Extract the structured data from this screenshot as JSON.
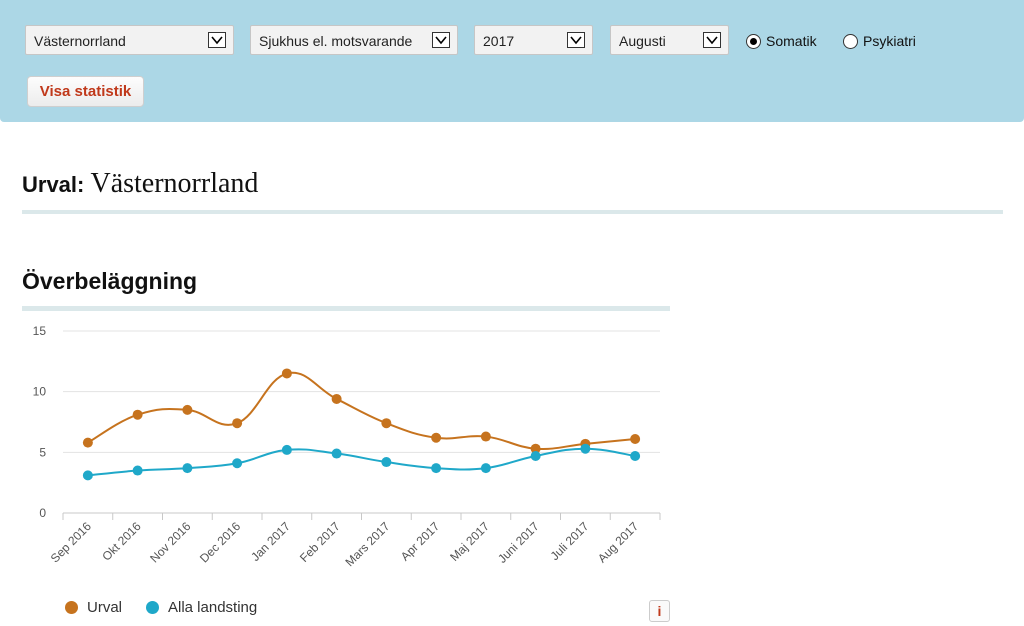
{
  "filters": {
    "region": "Västernorrland",
    "facility": "Sjukhus el. motsvarande",
    "year": "2017",
    "month": "Augusti",
    "radio_somatik": "Somatik",
    "radio_psykiatri": "Psykiatri",
    "somatik_selected": true,
    "button_label": "Visa statistik"
  },
  "selection": {
    "label": "Urval:",
    "value": "Västernorrland"
  },
  "section_title": "Överbeläggning",
  "info_label": "i",
  "colors": {
    "urval": "#c6731e",
    "alla": "#1fa8c9",
    "accent": "#c0391b"
  },
  "chart_data": {
    "type": "line",
    "title": "Överbeläggning",
    "categories": [
      "Sep 2016",
      "Okt 2016",
      "Nov 2016",
      "Dec 2016",
      "Jan 2017",
      "Feb 2017",
      "Mars 2017",
      "Apr 2017",
      "Maj 2017",
      "Juni 2017",
      "Juli 2017",
      "Aug 2017"
    ],
    "series": [
      {
        "name": "Urval",
        "color": "#c6731e",
        "values": [
          5.8,
          8.1,
          8.5,
          7.4,
          11.5,
          9.4,
          7.4,
          6.2,
          6.3,
          5.3,
          5.7,
          6.1
        ]
      },
      {
        "name": "Alla landsting",
        "color": "#1fa8c9",
        "values": [
          3.1,
          3.5,
          3.7,
          4.1,
          5.2,
          4.9,
          4.2,
          3.7,
          3.7,
          4.7,
          5.3,
          4.7
        ]
      }
    ],
    "y_ticks": [
      0,
      5,
      10,
      15
    ],
    "ylim": [
      0,
      15
    ],
    "xlabel": "",
    "ylabel": "",
    "legend": "bottom-left",
    "grid": true
  }
}
